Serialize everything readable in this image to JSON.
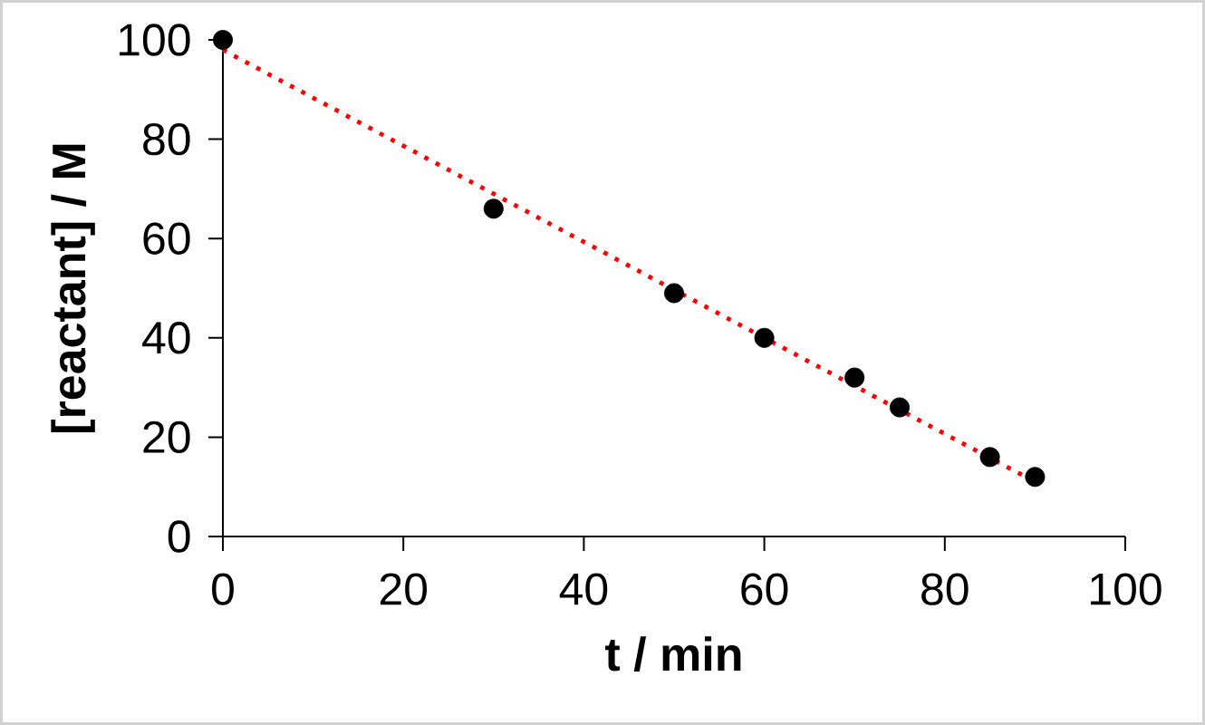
{
  "chart_data": {
    "type": "scatter",
    "xlabel": "t / min",
    "ylabel": "[reactant] / M",
    "xlim": [
      0,
      100
    ],
    "ylim": [
      0,
      100
    ],
    "xticks": [
      0,
      20,
      40,
      60,
      80,
      100
    ],
    "yticks": [
      0,
      20,
      40,
      60,
      80,
      100
    ],
    "series": [
      {
        "color": "#000000",
        "marker": "circle",
        "x": [
          0,
          30,
          50,
          60,
          70,
          75,
          85,
          90
        ],
        "values": [
          100,
          66,
          49,
          40,
          32,
          26,
          16,
          12
        ]
      },
      {
        "type": "line",
        "color": "#ff0000",
        "line_style": "dotted",
        "marker": "none",
        "x": [
          0,
          90
        ],
        "values": [
          98,
          11
        ]
      }
    ]
  }
}
